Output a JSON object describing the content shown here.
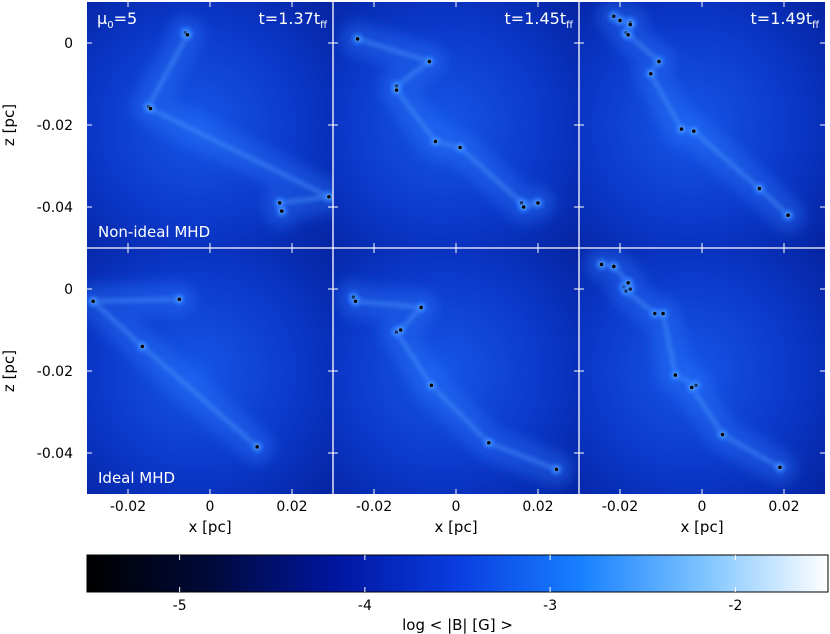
{
  "figure": {
    "mu_label": "μ",
    "mu_sub": "0",
    "mu_value": "=5",
    "row_labels": [
      "Non-ideal MHD",
      "Ideal MHD"
    ],
    "time_labels": [
      {
        "prefix": "t=1.37t",
        "sub": "ff"
      },
      {
        "prefix": "t=1.45t",
        "sub": "ff"
      },
      {
        "prefix": "t=1.49t",
        "sub": "ff"
      }
    ],
    "xlabel": "x [pc]",
    "ylabel": "z [pc]",
    "colorbar_label": "log < |B| [G] >"
  },
  "colors": {
    "background_field": "#0a2fbf",
    "filament": "#2f78ff",
    "bright": "#9fd0ff",
    "sink": "#000000",
    "divider": "#ffffff"
  },
  "chart_data": {
    "type": "heatmap",
    "panels_grid": {
      "rows": 2,
      "cols": 3
    },
    "xlim": [
      -0.03,
      0.03
    ],
    "ylim": [
      -0.05,
      0.01
    ],
    "xticks": [
      -0.02,
      0,
      0.02
    ],
    "xtick_labels": [
      "-0.02",
      "0",
      "0.02"
    ],
    "yticks": [
      0,
      -0.02,
      -0.04
    ],
    "ytick_labels": [
      "0",
      "-0.02",
      "-0.04"
    ],
    "colorbar": {
      "range": [
        -5.5,
        -1.5
      ],
      "ticks": [
        -5,
        -4,
        -3,
        -2
      ],
      "tick_labels": [
        "-5",
        "-4",
        "-3",
        "-2"
      ],
      "colors": [
        "#000000",
        "#000a3a",
        "#00159e",
        "#0a3de0",
        "#1880ff",
        "#7ec4ff",
        "#ffffff"
      ]
    },
    "panels": [
      {
        "row": 0,
        "col": 0,
        "model": "Non-ideal MHD",
        "time": "t=1.37t_ff",
        "sinks": [
          [
            -0.006,
            0.0025
          ],
          [
            -0.0055,
            0.002
          ],
          [
            -0.015,
            -0.0155
          ],
          [
            -0.0145,
            -0.016
          ],
          [
            0.017,
            -0.039
          ],
          [
            0.0175,
            -0.041
          ],
          [
            0.029,
            -0.0375
          ]
        ]
      },
      {
        "row": 0,
        "col": 1,
        "model": "Non-ideal MHD",
        "time": "t=1.45t_ff",
        "sinks": [
          [
            -0.024,
            0.001
          ],
          [
            -0.0065,
            -0.0045
          ],
          [
            -0.0145,
            -0.0105
          ],
          [
            -0.0145,
            -0.0115
          ],
          [
            -0.005,
            -0.024
          ],
          [
            0.001,
            -0.0255
          ],
          [
            0.016,
            -0.039
          ],
          [
            0.0165,
            -0.04
          ],
          [
            0.02,
            -0.039
          ]
        ]
      },
      {
        "row": 0,
        "col": 2,
        "model": "Non-ideal MHD",
        "time": "t=1.49t_ff",
        "sinks": [
          [
            -0.0215,
            0.0065
          ],
          [
            -0.02,
            0.0055
          ],
          [
            -0.0185,
            0.0025
          ],
          [
            -0.018,
            0.002
          ],
          [
            -0.0175,
            0.005
          ],
          [
            -0.0175,
            0.0045
          ],
          [
            -0.0105,
            -0.0045
          ],
          [
            -0.0125,
            -0.0075
          ],
          [
            -0.005,
            -0.021
          ],
          [
            -0.002,
            -0.0215
          ],
          [
            0.014,
            -0.0355
          ],
          [
            0.021,
            -0.042
          ]
        ]
      },
      {
        "row": 1,
        "col": 0,
        "model": "Ideal MHD",
        "time": "t=1.37t_ff",
        "sinks": [
          [
            -0.0285,
            -0.003
          ],
          [
            -0.0075,
            -0.0025
          ],
          [
            -0.0165,
            -0.014
          ],
          [
            0.0115,
            -0.0385
          ]
        ]
      },
      {
        "row": 1,
        "col": 1,
        "model": "Ideal MHD",
        "time": "t=1.45t_ff",
        "sinks": [
          [
            -0.025,
            -0.002
          ],
          [
            -0.0245,
            -0.003
          ],
          [
            -0.0085,
            -0.0045
          ],
          [
            -0.0145,
            -0.0105
          ],
          [
            -0.0135,
            -0.01
          ],
          [
            -0.006,
            -0.0235
          ],
          [
            0.008,
            -0.0375
          ],
          [
            0.0245,
            -0.044
          ]
        ]
      },
      {
        "row": 1,
        "col": 2,
        "model": "Ideal MHD",
        "time": "t=1.49t_ff",
        "sinks": [
          [
            -0.0245,
            0.006
          ],
          [
            -0.0215,
            0.0055
          ],
          [
            -0.019,
            0.0005
          ],
          [
            -0.0185,
            -0.0005
          ],
          [
            -0.0175,
            0
          ],
          [
            -0.018,
            0.0015
          ],
          [
            -0.0115,
            -0.006
          ],
          [
            -0.0095,
            -0.006
          ],
          [
            -0.0065,
            -0.021
          ],
          [
            -0.0015,
            -0.0235
          ],
          [
            -0.0025,
            -0.024
          ],
          [
            0.005,
            -0.0355
          ],
          [
            0.019,
            -0.0435
          ]
        ]
      }
    ]
  }
}
